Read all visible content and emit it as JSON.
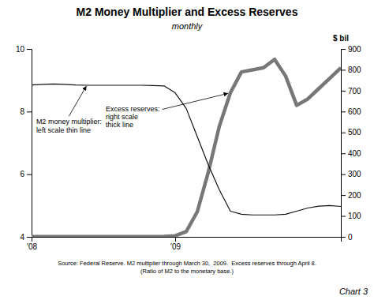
{
  "chart_data": {
    "type": "line",
    "title": "M2 Money Multiplier and Excess Reserves",
    "subtitle": "monthly",
    "y2_label": "$ bil",
    "source": "Source: Federal Reserve. M2 multiplier through March 30,  2009.  Excess reserves through April 8.\n(Ratio of M2 to the monetary base.)",
    "caption": "Chart 3",
    "categories": [
      "'08",
      null,
      null,
      null,
      null,
      null,
      null,
      null,
      null,
      null,
      null,
      null,
      null,
      "'09",
      null,
      null,
      null,
      null,
      null,
      null,
      null,
      null,
      null,
      null,
      null,
      null,
      null,
      null,
      null
    ],
    "series": [
      {
        "color": "#111111",
        "axis": "y",
        "values": [
          8.85,
          8.87,
          8.88,
          8.87,
          8.85,
          8.84,
          8.84,
          8.84,
          8.84,
          8.84,
          8.84,
          8.83,
          8.82,
          8.6,
          8.1,
          7.2,
          6.3,
          5.5,
          4.82,
          4.72,
          4.7,
          4.7,
          4.7,
          4.72,
          4.82,
          4.92,
          4.98,
          5.0,
          4.97
        ]
      },
      {
        "color": "#777777",
        "axis": "y2",
        "values": [
          1,
          1,
          1,
          1,
          1,
          1,
          1,
          1,
          1,
          1,
          1,
          1,
          2,
          5,
          25,
          120,
          310,
          530,
          690,
          790,
          800,
          810,
          850,
          770,
          630,
          660,
          710,
          760,
          810
        ]
      }
    ],
    "ylim": [
      4,
      10
    ],
    "yticks": [
      4,
      6,
      8,
      10
    ],
    "y2lim": [
      0,
      900
    ],
    "y2ticks": [
      0,
      100,
      200,
      300,
      400,
      500,
      600,
      700,
      800,
      900
    ],
    "annotations": [
      {
        "text": "M2 money multiplier:\nleft scale thin line"
      },
      {
        "text": "Excess reserves:\nright scale\nthick line"
      }
    ]
  }
}
